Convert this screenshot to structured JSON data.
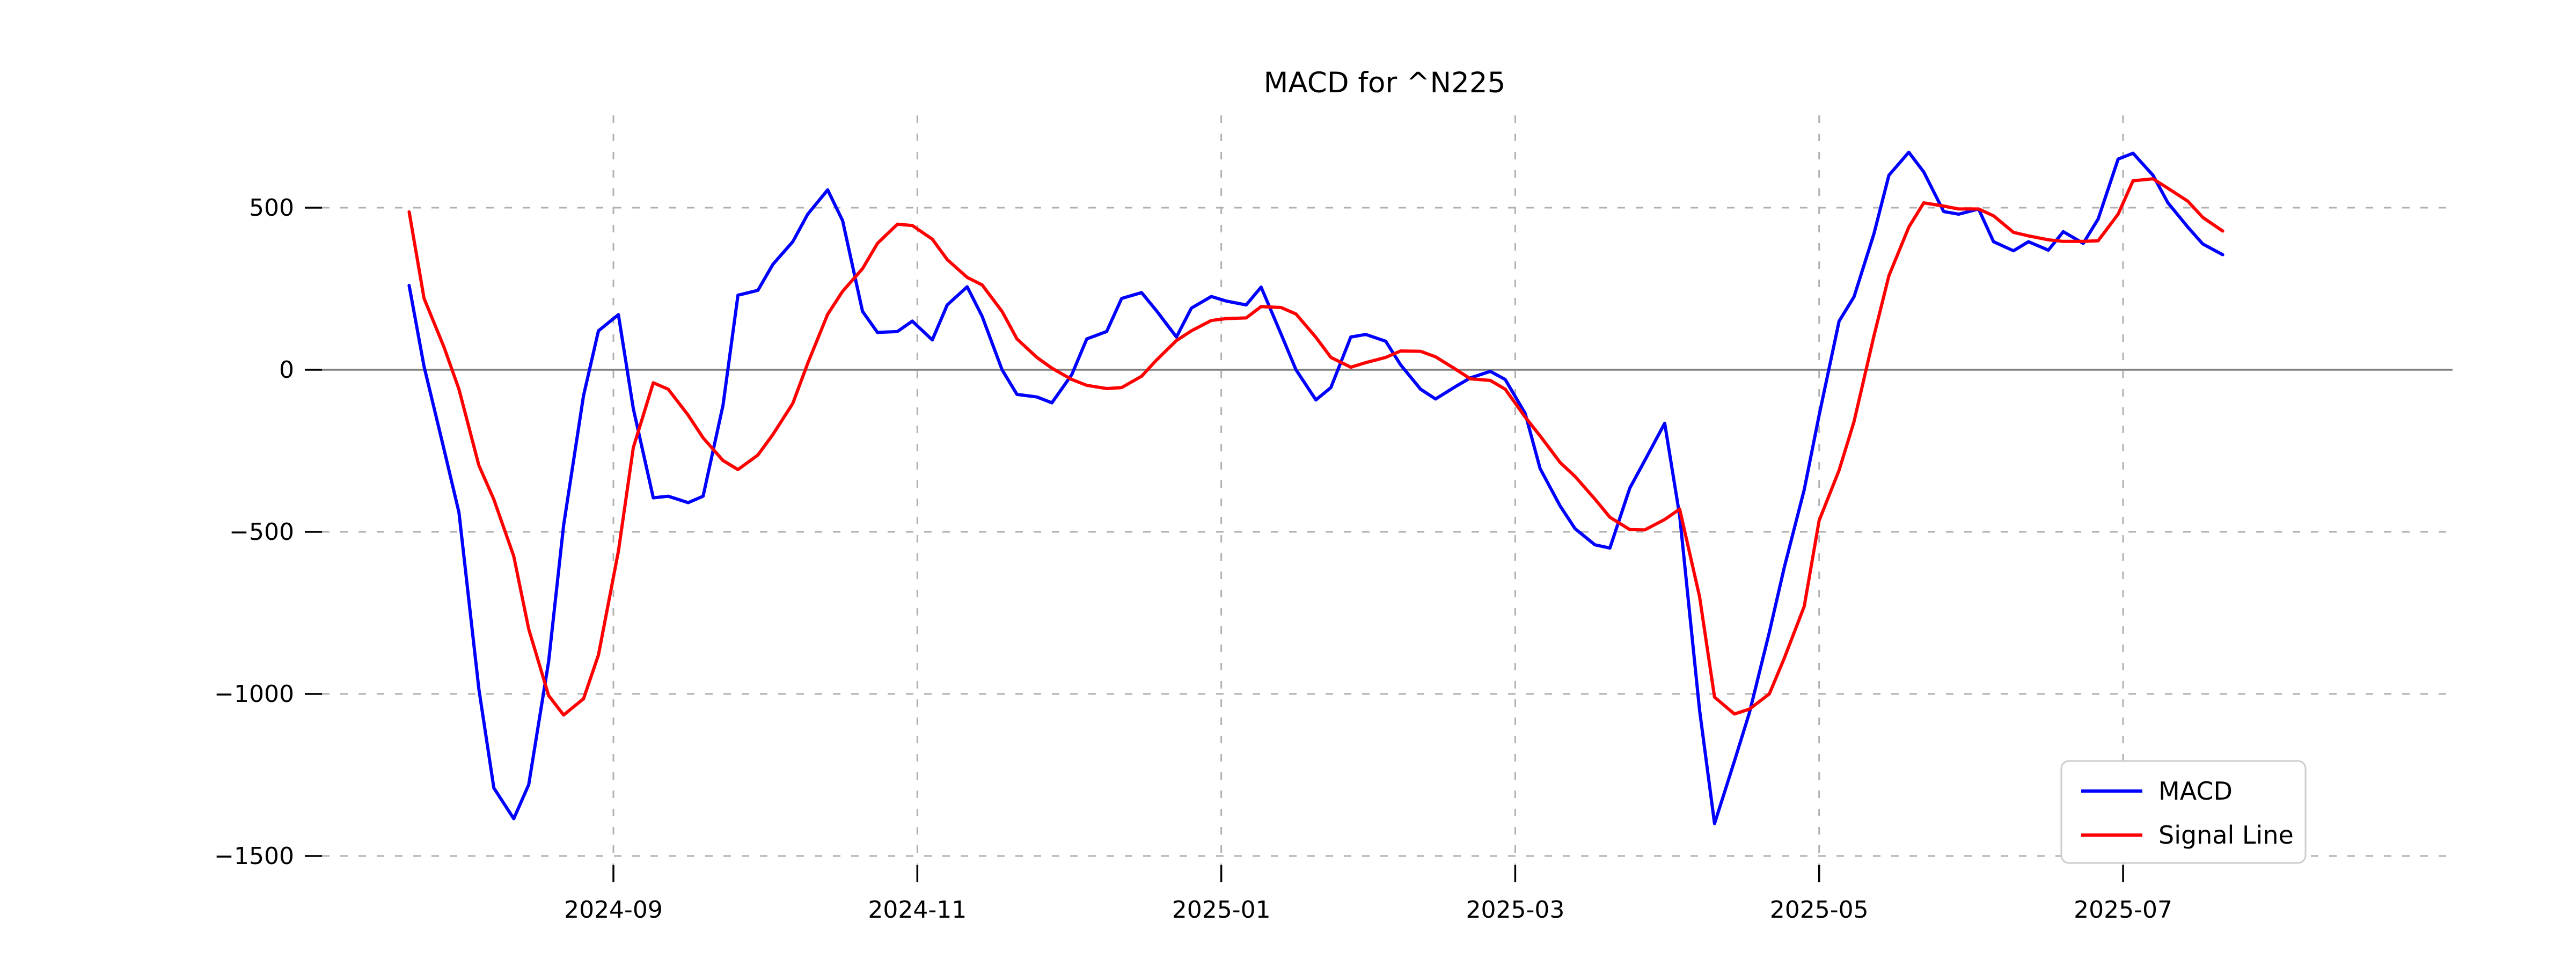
{
  "title": "MACD for ^N225",
  "legend": {
    "position": "lower right",
    "items": [
      {
        "label": "MACD",
        "color": "#0000ff"
      },
      {
        "label": "Signal Line",
        "color": "#ff0000"
      }
    ]
  },
  "axes": {
    "y_ticks": [
      {
        "label": "500",
        "value": 500
      },
      {
        "label": "0",
        "value": 0
      },
      {
        "label": "−500",
        "value": -500
      },
      {
        "label": "−1000",
        "value": -1000
      },
      {
        "label": "−1500",
        "value": -1500
      }
    ],
    "x_ticks": [
      {
        "label": "2024-09",
        "date": "2024-09-01"
      },
      {
        "label": "2024-11",
        "date": "2024-11-01"
      },
      {
        "label": "2025-01",
        "date": "2025-01-01"
      },
      {
        "label": "2025-03",
        "date": "2025-03-01"
      },
      {
        "label": "2025-05",
        "date": "2025-05-01"
      },
      {
        "label": "2025-07",
        "date": "2025-07-01"
      }
    ]
  },
  "colors": {
    "macd": "#0000ff",
    "signal": "#ff0000",
    "grid": "#b0b0b0",
    "zero_line": "#808080",
    "legend_border": "#cccccc",
    "background": "#ffffff"
  },
  "chart_data": {
    "type": "line",
    "title": "MACD for ^N225",
    "xlabel": "",
    "ylabel": "",
    "ylim": [
      -1530,
      790
    ],
    "x_range": [
      "2024-07-22",
      "2025-07-21"
    ],
    "grid": true,
    "legend_position": "lower right",
    "dates": [
      "2024-07-22",
      "2024-07-25",
      "2024-07-29",
      "2024-08-01",
      "2024-08-05",
      "2024-08-08",
      "2024-08-12",
      "2024-08-15",
      "2024-08-19",
      "2024-08-22",
      "2024-08-26",
      "2024-08-29",
      "2024-09-02",
      "2024-09-05",
      "2024-09-09",
      "2024-09-12",
      "2024-09-16",
      "2024-09-19",
      "2024-09-23",
      "2024-09-26",
      "2024-09-30",
      "2024-10-03",
      "2024-10-07",
      "2024-10-10",
      "2024-10-14",
      "2024-10-17",
      "2024-10-21",
      "2024-10-24",
      "2024-10-28",
      "2024-10-31",
      "2024-11-04",
      "2024-11-07",
      "2024-11-11",
      "2024-11-14",
      "2024-11-18",
      "2024-11-21",
      "2024-11-25",
      "2024-11-28",
      "2024-12-02",
      "2024-12-05",
      "2024-12-09",
      "2024-12-12",
      "2024-12-16",
      "2024-12-19",
      "2024-12-23",
      "2024-12-26",
      "2024-12-30",
      "2025-01-02",
      "2025-01-06",
      "2025-01-09",
      "2025-01-13",
      "2025-01-16",
      "2025-01-20",
      "2025-01-23",
      "2025-01-27",
      "2025-01-30",
      "2025-02-03",
      "2025-02-06",
      "2025-02-10",
      "2025-02-13",
      "2025-02-17",
      "2025-02-20",
      "2025-02-24",
      "2025-02-27",
      "2025-03-03",
      "2025-03-06",
      "2025-03-10",
      "2025-03-13",
      "2025-03-17",
      "2025-03-20",
      "2025-03-24",
      "2025-03-27",
      "2025-03-31",
      "2025-04-03",
      "2025-04-07",
      "2025-04-10",
      "2025-04-14",
      "2025-04-17",
      "2025-04-21",
      "2025-04-24",
      "2025-04-28",
      "2025-05-01",
      "2025-05-05",
      "2025-05-08",
      "2025-05-12",
      "2025-05-15",
      "2025-05-19",
      "2025-05-22",
      "2025-05-26",
      "2025-05-29",
      "2025-06-02",
      "2025-06-05",
      "2025-06-09",
      "2025-06-12",
      "2025-06-16",
      "2025-06-19",
      "2025-06-23",
      "2025-06-26",
      "2025-06-30",
      "2025-07-03",
      "2025-07-07",
      "2025-07-10",
      "2025-07-14",
      "2025-07-17",
      "2025-07-21"
    ],
    "series": [
      {
        "name": "MACD",
        "color": "#0000ff",
        "values": [
          260,
          10,
          -245,
          -440,
          -985,
          -1290,
          -1385,
          -1280,
          -900,
          -480,
          -80,
          120,
          170,
          -120,
          -395,
          -390,
          -410,
          -390,
          -110,
          230,
          245,
          325,
          395,
          480,
          555,
          460,
          180,
          115,
          118,
          150,
          92,
          200,
          256,
          165,
          0,
          -76,
          -84,
          -102,
          -15,
          95,
          118,
          220,
          238,
          182,
          101,
          190,
          226,
          212,
          200,
          255,
          110,
          0,
          -93,
          -55,
          101,
          109,
          88,
          15,
          -60,
          -90,
          -52,
          -25,
          -5,
          -30,
          -135,
          -305,
          -420,
          -490,
          -540,
          -550,
          -365,
          -280,
          -165,
          -450,
          -1050,
          -1400,
          -1207,
          -1058,
          -810,
          -610,
          -370,
          -140,
          150,
          225,
          420,
          600,
          671,
          610,
          488,
          480,
          496,
          395,
          367,
          395,
          369,
          426,
          390,
          465,
          650,
          668,
          600,
          515,
          440,
          388,
          355
        ]
      },
      {
        "name": "Signal Line",
        "color": "#ff0000",
        "values": [
          487,
          220,
          70,
          -60,
          -295,
          -400,
          -575,
          -800,
          -1005,
          -1065,
          -1015,
          -880,
          -560,
          -240,
          -40,
          -60,
          -140,
          -210,
          -280,
          -308,
          -263,
          -200,
          -104,
          20,
          171,
          242,
          312,
          390,
          449,
          445,
          403,
          340,
          285,
          262,
          180,
          95,
          38,
          5,
          -30,
          -48,
          -58,
          -55,
          -20,
          30,
          90,
          120,
          152,
          158,
          160,
          195,
          192,
          172,
          100,
          38,
          8,
          22,
          38,
          58,
          57,
          40,
          2,
          -28,
          -33,
          -60,
          -146,
          -204,
          -286,
          -329,
          -399,
          -455,
          -493,
          -494,
          -462,
          -430,
          -700,
          -1010,
          -1062,
          -1047,
          -1000,
          -890,
          -730,
          -465,
          -310,
          -160,
          105,
          290,
          440,
          515,
          505,
          496,
          496,
          475,
          424,
          413,
          401,
          396,
          396,
          398,
          480,
          583,
          589,
          560,
          520,
          470,
          428
        ]
      }
    ]
  }
}
